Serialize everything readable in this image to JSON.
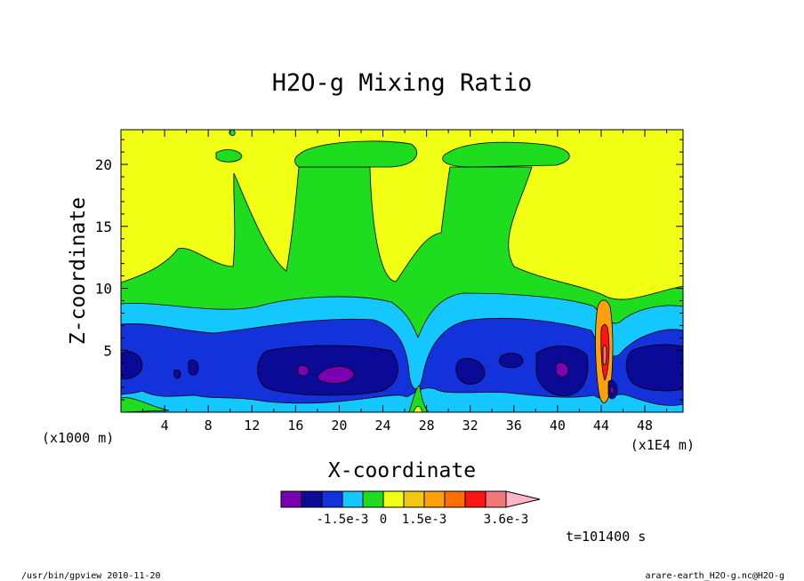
{
  "chart_data": {
    "type": "heatmap",
    "title": "H2O-g Mixing Ratio",
    "xlabel": "X-coordinate",
    "ylabel": "Z-coordinate",
    "x_unit_left": "(x1000 m)",
    "x_unit_right": "(x1E4 m)",
    "xlim": [
      0,
      51.5
    ],
    "ylim": [
      0,
      22.8
    ],
    "x_ticks": [
      4,
      8,
      12,
      16,
      20,
      24,
      28,
      32,
      36,
      40,
      44,
      48
    ],
    "y_ticks": [
      5,
      10,
      15,
      20
    ],
    "x_tick_labels": [
      "4",
      "8",
      "12",
      "16",
      "20",
      "24",
      "28",
      "32",
      "36",
      "40",
      "44",
      "48"
    ],
    "y_tick_labels": [
      "5",
      "10",
      "15",
      "20"
    ],
    "colorbar": {
      "colors": [
        "#7a00b0",
        "#0a0a96",
        "#1432dc",
        "#14c8ff",
        "#1edc1e",
        "#f0ff14",
        "#f0c814",
        "#ffa00a",
        "#ff6e00",
        "#ff1414",
        "#f07878",
        "#ffb4c8"
      ],
      "labels": [
        "-1.5e-3",
        "0",
        "1.5e-3",
        "3.6e-3"
      ],
      "label_positions": [
        3,
        5,
        7,
        11
      ]
    },
    "annotation_time": "t=101400 s",
    "footer_left": "/usr/bin/gpview  2010-11-20",
    "footer_right": "arare-earth_H2O-g.nc@H2O-g"
  }
}
